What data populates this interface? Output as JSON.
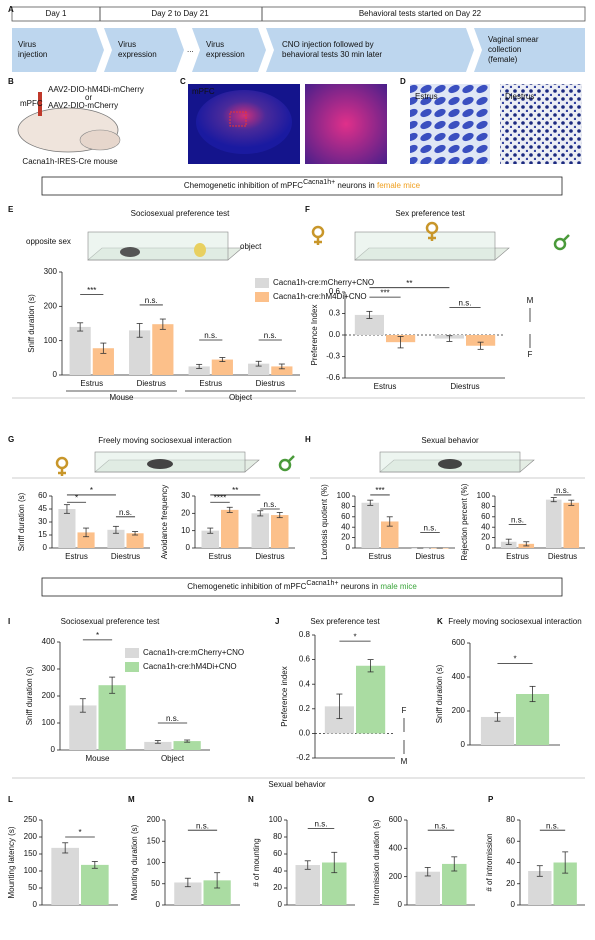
{
  "figure": {
    "panel_letters": [
      "A",
      "B",
      "C",
      "D",
      "E",
      "F",
      "G",
      "H",
      "I",
      "J",
      "K",
      "L",
      "M",
      "N",
      "O",
      "P"
    ],
    "timeline": {
      "days": [
        "Day 1",
        "Day 2 to Day 21",
        "Behavioral tests started on Day 22"
      ],
      "steps": [
        [
          "Virus",
          "injection"
        ],
        [
          "Virus",
          "expression"
        ],
        [
          "..."
        ],
        [
          "Virus",
          "expression"
        ],
        [
          "CNO injection followed by",
          "behavioral tests 30 min later"
        ],
        [
          "Vaginal smear",
          "collection",
          "(female)"
        ]
      ]
    },
    "injection": {
      "region": "mPFC",
      "virus_1": "AAV2-DIO-hM4Di-mCherry",
      "or": "or",
      "virus_2": "AAV2-DIO-mCherry",
      "mouse": "Cacna1h-IRES-Cre mouse"
    },
    "histology": {
      "region": "mPFC"
    },
    "smear": {
      "estrus": "Estrus",
      "diestrus": "Diestrus"
    },
    "banners": [
      {
        "lead": "Chemogenetic inhibition of  mPFC",
        "superscript": "Cacna1h+",
        "mid": " neurons in ",
        "sex": "female mice"
      },
      {
        "lead": "Chemogenetic inhibition of  mPFC",
        "superscript": "Cacna1h+",
        "mid": " neurons in ",
        "sex": "male mice"
      }
    ],
    "E_labels": {
      "left": "opposite sex",
      "right": "object"
    },
    "F_labels": {
      "up": "M",
      "down": "F"
    },
    "J_labels": {
      "up": "F",
      "down": "M"
    },
    "sexual_behavior_title": "Sexual behavior"
  },
  "chart_data": [
    {
      "type": "bar",
      "title": "Sociosexual preference test",
      "ylabel": "Sniff duration (s)",
      "ylim": [
        0,
        300
      ],
      "yticks": [
        0,
        100,
        200,
        300
      ],
      "categories": [
        "Estrus",
        "Diestrus",
        "Estrus",
        "Diestrus"
      ],
      "groups": [
        "Mouse",
        "Object"
      ],
      "series": [
        {
          "name": "Cacna1h-cre:mCherry+CNO",
          "color": "#d9d9d9",
          "values": [
            140,
            130,
            25,
            33
          ],
          "errors": [
            12,
            20,
            6,
            7
          ]
        },
        {
          "name": "Cacna1h-cre:hM4Di+CNO",
          "color": "#fcc08a",
          "values": [
            78,
            148,
            45,
            25
          ],
          "errors": [
            15,
            15,
            6,
            7
          ]
        }
      ],
      "significance": [
        "***",
        "n.s.",
        "n.s.",
        "n.s."
      ]
    },
    {
      "type": "bar",
      "title": "Sex preference test",
      "ylabel": "Preference Index",
      "ylim": [
        -0.6,
        0.6
      ],
      "yticks": [
        -0.6,
        -0.3,
        {
          "value": 0,
          "label": "0.0"
        },
        0.3,
        0.6
      ],
      "categories": [
        "Estrus",
        "Diestrus"
      ],
      "series": [
        {
          "color": "#d9d9d9",
          "values": [
            0.28,
            -0.05
          ],
          "errors": [
            0.05,
            0.04
          ]
        },
        {
          "color": "#fcc08a",
          "values": [
            -0.1,
            -0.15
          ],
          "errors": [
            0.08,
            0.05
          ]
        }
      ],
      "significance": [
        "**",
        "***",
        "n.s."
      ]
    },
    {
      "type": "bar",
      "title": "Freely moving sociosexual interaction",
      "ylabel": "Sniff duration (s)",
      "ylim": [
        0,
        60
      ],
      "yticks": [
        0,
        15,
        30,
        45,
        60
      ],
      "categories": [
        "Estrus",
        "Diestrus"
      ],
      "series": [
        {
          "color": "#d9d9d9",
          "values": [
            45,
            21
          ],
          "errors": [
            5,
            4
          ]
        },
        {
          "color": "#fcc08a",
          "values": [
            18,
            17
          ],
          "errors": [
            5,
            2
          ]
        }
      ],
      "significance": [
        "*",
        "*",
        "n.s."
      ]
    },
    {
      "type": "bar",
      "ylabel": "Avoidance frequency",
      "ylim": [
        0,
        30
      ],
      "yticks": [
        0,
        10,
        20,
        30
      ],
      "categories": [
        "Estrus",
        "Diestrus"
      ],
      "series": [
        {
          "color": "#d9d9d9",
          "values": [
            10,
            20
          ],
          "errors": [
            1.5,
            1.5
          ]
        },
        {
          "color": "#fcc08a",
          "values": [
            22,
            19
          ],
          "errors": [
            1.5,
            1.5
          ]
        }
      ],
      "significance": [
        "**",
        "****",
        "n.s."
      ]
    },
    {
      "type": "bar",
      "title": "Sexual behavior",
      "ylabel": "Lordosis quotient (%)",
      "ylim": [
        0,
        100
      ],
      "yticks": [
        0,
        20,
        40,
        60,
        80,
        100
      ],
      "categories": [
        "Estrus",
        "Diestrus"
      ],
      "series": [
        {
          "color": "#d9d9d9",
          "values": [
            87,
            0
          ],
          "errors": [
            5,
            0
          ]
        },
        {
          "color": "#fcc08a",
          "values": [
            51,
            0
          ],
          "errors": [
            9,
            0
          ]
        }
      ],
      "significance": [
        "***",
        "n.s."
      ]
    },
    {
      "type": "bar",
      "ylabel": "Rejection percent (%)",
      "ylim": [
        0,
        100
      ],
      "yticks": [
        0,
        20,
        40,
        60,
        80,
        100
      ],
      "categories": [
        "Estrus",
        "Diestrus"
      ],
      "series": [
        {
          "color": "#d9d9d9",
          "values": [
            12,
            93
          ],
          "errors": [
            5,
            4
          ]
        },
        {
          "color": "#fcc08a",
          "values": [
            8,
            87
          ],
          "errors": [
            4,
            5
          ]
        }
      ],
      "significance": [
        "n.s.",
        "n.s."
      ]
    },
    {
      "type": "bar",
      "title": "Sociosexual preference test",
      "ylabel": "Sniff duration (s)",
      "ylim": [
        0,
        400
      ],
      "yticks": [
        0,
        100,
        200,
        300,
        400
      ],
      "categories": [
        "Mouse",
        "Object"
      ],
      "series": [
        {
          "name": "Cacna1h-cre:mCherry+CNO",
          "color": "#d9d9d9",
          "values": [
            165,
            30
          ],
          "errors": [
            25,
            5
          ]
        },
        {
          "name": "Cacna1h-cre:hM4Di+CNO",
          "color": "#aadca2",
          "values": [
            240,
            33
          ],
          "errors": [
            30,
            4
          ]
        }
      ],
      "significance": [
        "*",
        "n.s."
      ]
    },
    {
      "type": "bar",
      "title": "Sex preference test",
      "ylabel": "Preference index",
      "ylim": [
        -0.2,
        0.8
      ],
      "yticks": [
        -0.2,
        {
          "value": 0,
          "label": "0.0"
        },
        0.2,
        0.4,
        0.6,
        0.8
      ],
      "categories": [
        null
      ],
      "series": [
        {
          "color": "#d9d9d9",
          "values": [
            0.22
          ],
          "errors": [
            0.1
          ]
        },
        {
          "color": "#aadca2",
          "values": [
            0.55
          ],
          "errors": [
            0.05
          ]
        }
      ],
      "significance": [
        "*"
      ]
    },
    {
      "type": "bar",
      "title": "Freely moving sociosexual interaction",
      "ylabel": "Sniff duration (s)",
      "ylim": [
        0,
        600
      ],
      "yticks": [
        0,
        200,
        400,
        600
      ],
      "categories": [
        null
      ],
      "series": [
        {
          "color": "#d9d9d9",
          "values": [
            165
          ],
          "errors": [
            25
          ]
        },
        {
          "color": "#aadca2",
          "values": [
            300
          ],
          "errors": [
            45
          ]
        }
      ],
      "significance": [
        "*"
      ]
    },
    {
      "type": "bar",
      "ylabel": "Mounting latency (s)",
      "ylim": [
        0,
        250
      ],
      "yticks": [
        0,
        50,
        100,
        150,
        200,
        250
      ],
      "categories": [
        null
      ],
      "series": [
        {
          "color": "#d9d9d9",
          "values": [
            168
          ],
          "errors": [
            15
          ]
        },
        {
          "color": "#aadca2",
          "values": [
            118
          ],
          "errors": [
            10
          ]
        }
      ],
      "significance": [
        "*"
      ]
    },
    {
      "type": "bar",
      "ylabel": "Mounting duration (s)",
      "ylim": [
        0,
        200
      ],
      "yticks": [
        0,
        50,
        100,
        150,
        200
      ],
      "categories": [
        null
      ],
      "series": [
        {
          "color": "#d9d9d9",
          "values": [
            53
          ],
          "errors": [
            10
          ]
        },
        {
          "color": "#aadca2",
          "values": [
            58
          ],
          "errors": [
            18
          ]
        }
      ],
      "significance": [
        "n.s."
      ]
    },
    {
      "type": "bar",
      "ylabel": "# of mounting",
      "ylim": [
        0,
        100
      ],
      "yticks": [
        0,
        20,
        40,
        60,
        80,
        100
      ],
      "categories": [
        null
      ],
      "series": [
        {
          "color": "#d9d9d9",
          "values": [
            47
          ],
          "errors": [
            5
          ]
        },
        {
          "color": "#aadca2",
          "values": [
            50
          ],
          "errors": [
            12
          ]
        }
      ],
      "significance": [
        "n.s."
      ]
    },
    {
      "type": "bar",
      "ylabel": "Intromission duration (s)",
      "ylim": [
        0,
        600
      ],
      "yticks": [
        0,
        200,
        400,
        600
      ],
      "categories": [
        null
      ],
      "series": [
        {
          "color": "#d9d9d9",
          "values": [
            235
          ],
          "errors": [
            30
          ]
        },
        {
          "color": "#aadca2",
          "values": [
            290
          ],
          "errors": [
            50
          ]
        }
      ],
      "significance": [
        "n.s."
      ]
    },
    {
      "type": "bar",
      "ylabel": "# of intromission",
      "ylim": [
        0,
        80
      ],
      "yticks": [
        0,
        20,
        40,
        60,
        80
      ],
      "categories": [
        null
      ],
      "series": [
        {
          "color": "#d9d9d9",
          "values": [
            32
          ],
          "errors": [
            5
          ]
        },
        {
          "color": "#aadca2",
          "values": [
            40
          ],
          "errors": [
            10
          ]
        }
      ],
      "significance": [
        "n.s."
      ]
    }
  ]
}
